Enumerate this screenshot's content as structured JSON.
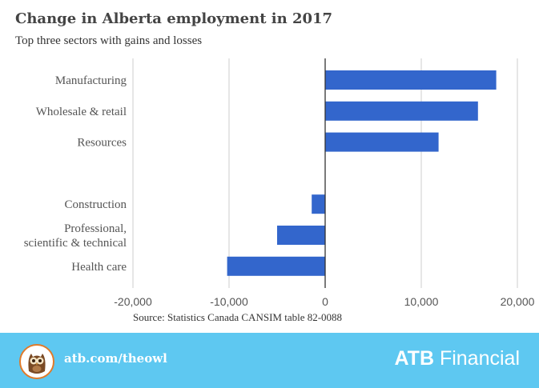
{
  "chart_data": {
    "type": "bar",
    "orientation": "horizontal",
    "title": "Change in Alberta employment in 2017",
    "subtitle": "Top three sectors with gains and losses",
    "categories": [
      "Manufacturing",
      "Wholesale & retail",
      "Resources",
      "",
      "Construction",
      "Professional,\nscientific & technical",
      "Health care"
    ],
    "values": [
      17800,
      15900,
      11800,
      null,
      -1400,
      -5000,
      -10200
    ],
    "xlim": [
      -20000,
      20000
    ],
    "xticks": [
      -20000,
      -10000,
      0,
      10000,
      20000
    ],
    "xtick_labels": [
      "-20,000",
      "-10,000",
      "0",
      "10,000",
      "20,000"
    ],
    "grid": "vertical",
    "bar_color": "#3366cc",
    "source": "Source: Statistics Canada CANSIM table 82-0088"
  },
  "footer": {
    "url": "atb.com/theowl",
    "brand_bold": "ATB",
    "brand_rest": " Financial",
    "logo_icon": "owl-icon",
    "background": "#5ec8f1"
  }
}
